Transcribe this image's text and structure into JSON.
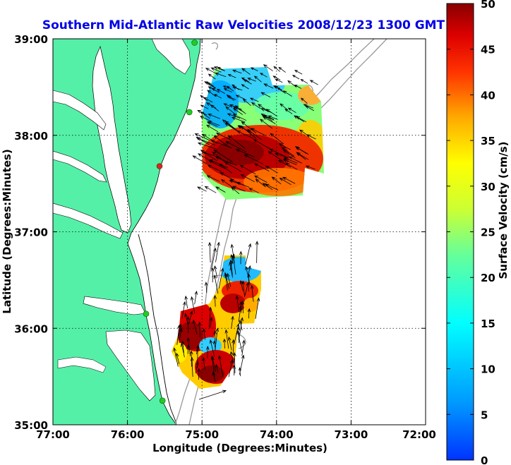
{
  "title": "Southern Mid-Atlantic Raw Velocities 2008/12/23 1300 GMT",
  "x_axis": {
    "label": "Longitude (Degrees:Minutes)",
    "ticks": [
      "77:00",
      "76:00",
      "75:00",
      "74:00",
      "73:00",
      "72:00"
    ]
  },
  "y_axis": {
    "label": "Latitude (Degrees:Minutes)",
    "ticks": [
      "39:00",
      "38:00",
      "37:00",
      "36:00",
      "35:00"
    ]
  },
  "colorbar": {
    "label": "Surface Velocity (cm/s)",
    "ticks": [
      "50",
      "45",
      "40",
      "35",
      "30",
      "25",
      "20",
      "15",
      "10",
      "5",
      "0"
    ],
    "min": 0,
    "max": 50,
    "colormap": "jet"
  },
  "colors": {
    "title": "#0000e6",
    "land": "#55f0a8",
    "background": "#ffffff",
    "bathymetry": "#999999",
    "station_active": "#22cc22",
    "station_inactive": "#dd2222"
  },
  "map": {
    "lon_range": [
      -77,
      -72
    ],
    "lat_range": [
      35,
      39
    ],
    "grid": true,
    "stations": [
      {
        "lat": 38.96,
        "lon": -75.1,
        "status": "active"
      },
      {
        "lat": 38.24,
        "lon": -75.17,
        "status": "active"
      },
      {
        "lat": 37.68,
        "lon": -75.57,
        "status": "inactive"
      },
      {
        "lat": 36.15,
        "lon": -75.75,
        "status": "active"
      },
      {
        "lat": 35.25,
        "lon": -75.53,
        "status": "active"
      }
    ],
    "velocity_regions": [
      {
        "name": "northern",
        "pattern": "slow (10-20 cm/s) near 38.7N 74.9W, fast (45-50 cm/s) core near 37.8N 74.6W, flow toward northwest"
      },
      {
        "name": "southern",
        "pattern": "fast (40-50 cm/s) near 36.2N 75.0W and 35.7N 74.8W, slow (10-15 cm/s) near 36.6N 74.6W, flow toward north"
      }
    ]
  }
}
